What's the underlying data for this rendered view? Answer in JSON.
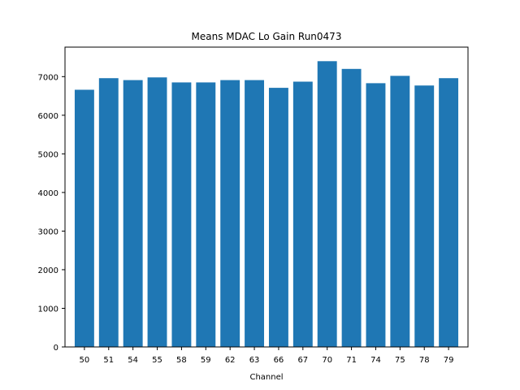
{
  "chart_data": {
    "type": "bar",
    "title": "Means MDAC Lo Gain Run0473",
    "xlabel": "Channel",
    "ylabel": "",
    "categories": [
      "50",
      "51",
      "54",
      "55",
      "58",
      "59",
      "62",
      "63",
      "66",
      "67",
      "70",
      "71",
      "74",
      "75",
      "78",
      "79"
    ],
    "values": [
      6660,
      6960,
      6910,
      6980,
      6850,
      6850,
      6910,
      6910,
      6710,
      6870,
      7400,
      7200,
      6830,
      7020,
      6770,
      6960
    ],
    "ylim": [
      0,
      7764
    ],
    "yticks": [
      0,
      1000,
      2000,
      3000,
      4000,
      5000,
      6000,
      7000
    ],
    "bar_color": "#1f77b4",
    "grid": false,
    "legend": "none"
  }
}
